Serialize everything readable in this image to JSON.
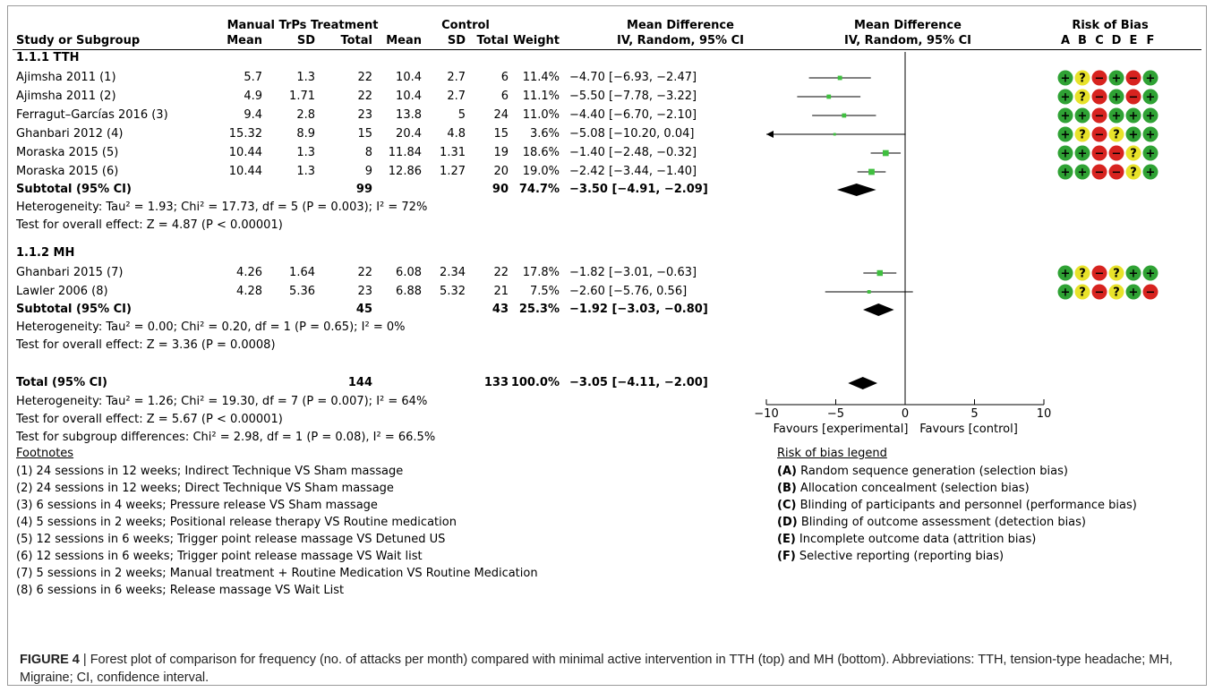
{
  "header": {
    "group_exp": "Manual TrPs Treatment",
    "group_ctrl": "Control",
    "md_title": "Mean Difference",
    "md_sub": "IV, Random, 95% CI",
    "plot_title": "Mean Difference",
    "plot_sub": "IV, Random, 95% CI",
    "rob_title": "Risk of Bias",
    "rob_letters": [
      "A",
      "B",
      "C",
      "D",
      "E",
      "F"
    ],
    "study_col": "Study or Subgroup",
    "mean": "Mean",
    "sd": "SD",
    "total": "Total",
    "weight": "Weight"
  },
  "colors": {
    "plus": "#2fa234",
    "question": "#e8e22a",
    "minus": "#d7231f",
    "point": "#3fbf3f"
  },
  "subgroups": [
    {
      "title": "1.1.1 TTH",
      "studies": [
        {
          "name": "Ajimsha 2011 (1)",
          "em": "5.7",
          "esd": "1.3",
          "et": "22",
          "cm": "10.4",
          "csd": "2.7",
          "ct": "6",
          "w": "11.4%",
          "ci": "−4.70 [−6.93, −2.47]",
          "rob": [
            "+",
            "?",
            "-",
            "+",
            "-",
            "+"
          ]
        },
        {
          "name": "Ajimsha 2011 (2)",
          "em": "4.9",
          "esd": "1.71",
          "et": "22",
          "cm": "10.4",
          "csd": "2.7",
          "ct": "6",
          "w": "11.1%",
          "ci": "−5.50 [−7.78, −3.22]",
          "rob": [
            "+",
            "?",
            "-",
            "+",
            "-",
            "+"
          ]
        },
        {
          "name": "Ferragut–Garcías 2016 (3)",
          "em": "9.4",
          "esd": "2.8",
          "et": "23",
          "cm": "13.8",
          "csd": "5",
          "ct": "24",
          "w": "11.0%",
          "ci": "−4.40 [−6.70, −2.10]",
          "rob": [
            "+",
            "+",
            "-",
            "+",
            "+",
            "+"
          ]
        },
        {
          "name": "Ghanbari 2012 (4)",
          "em": "15.32",
          "esd": "8.9",
          "et": "15",
          "cm": "20.4",
          "csd": "4.8",
          "ct": "15",
          "w": "3.6%",
          "ci": "−5.08 [−10.20, 0.04]",
          "rob": [
            "+",
            "?",
            "-",
            "?",
            "+",
            "+"
          ]
        },
        {
          "name": "Moraska 2015 (5)",
          "em": "10.44",
          "esd": "1.3",
          "et": "8",
          "cm": "11.84",
          "csd": "1.31",
          "ct": "19",
          "w": "18.6%",
          "ci": "−1.40 [−2.48, −0.32]",
          "rob": [
            "+",
            "+",
            "-",
            "-",
            "?",
            "+"
          ]
        },
        {
          "name": "Moraska 2015 (6)",
          "em": "10.44",
          "esd": "1.3",
          "et": "9",
          "cm": "12.86",
          "csd": "1.27",
          "ct": "20",
          "w": "19.0%",
          "ci": "−2.42 [−3.44, −1.40]",
          "rob": [
            "+",
            "+",
            "-",
            "-",
            "?",
            "+"
          ]
        }
      ],
      "subtotal": {
        "label": "Subtotal (95% CI)",
        "et": "99",
        "ct": "90",
        "w": "74.7%",
        "ci": "−3.50 [−4.91, −2.09]"
      },
      "heterogeneity": "Heterogeneity: Tau² = 1.93; Chi² = 17.73, df = 5 (P = 0.003); I² = 72%",
      "overall": "Test for overall effect: Z = 4.87 (P < 0.00001)"
    },
    {
      "title": "1.1.2 MH",
      "studies": [
        {
          "name": "Ghanbari 2015 (7)",
          "em": "4.26",
          "esd": "1.64",
          "et": "22",
          "cm": "6.08",
          "csd": "2.34",
          "ct": "22",
          "w": "17.8%",
          "ci": "−1.82 [−3.01, −0.63]",
          "rob": [
            "+",
            "?",
            "-",
            "?",
            "+",
            "+"
          ]
        },
        {
          "name": "Lawler 2006 (8)",
          "em": "4.28",
          "esd": "5.36",
          "et": "23",
          "cm": "6.88",
          "csd": "5.32",
          "ct": "21",
          "w": "7.5%",
          "ci": "−2.60 [−5.76, 0.56]",
          "rob": [
            "+",
            "?",
            "-",
            "?",
            "+",
            "-"
          ]
        }
      ],
      "subtotal": {
        "label": "Subtotal (95% CI)",
        "et": "45",
        "ct": "43",
        "w": "25.3%",
        "ci": "−1.92 [−3.03, −0.80]"
      },
      "heterogeneity": "Heterogeneity: Tau² = 0.00; Chi² = 0.20, df = 1 (P = 0.65); I² = 0%",
      "overall": "Test for overall effect: Z = 3.36 (P = 0.0008)"
    }
  ],
  "total": {
    "label": "Total (95% CI)",
    "et": "144",
    "ct": "133",
    "w": "100.0%",
    "ci": "−3.05 [−4.11, −2.00]",
    "heterogeneity": "Heterogeneity: Tau² = 1.26; Chi² = 19.30, df = 7 (P = 0.007); I² = 64%",
    "overall": "Test for overall effect: Z = 5.67 (P < 0.00001)",
    "subgroup_diff": "Test for subgroup differences: Chi² = 2.98, df = 1 (P = 0.08), I² = 66.5%"
  },
  "footnotes": {
    "title": "Footnotes",
    "items": [
      "(1) 24 sessions in 12 weeks; Indirect Technique VS Sham massage",
      "(2) 24 sessions in 12 weeks; Direct Technique VS Sham massage",
      "(3) 6 sessions in 4 weeks; Pressure release VS Sham massage",
      "(4) 5 sessions in 2 weeks; Positional release therapy VS Routine medication",
      "(5) 12 sessions in 6 weeks; Trigger point release massage VS Detuned US",
      "(6) 12 sessions in 6 weeks; Trigger point release massage VS Wait list",
      "(7) 5 sessions in 2 weeks; Manual treatment + Routine Medication VS Routine Medication",
      "(8) 6 sessions in 6 weeks; Release massage VS Wait List"
    ]
  },
  "rob_legend": {
    "title": "Risk of bias legend",
    "items": [
      {
        "key": "(A)",
        "text": " Random sequence generation (selection bias)"
      },
      {
        "key": "(B)",
        "text": " Allocation concealment (selection bias)"
      },
      {
        "key": "(C)",
        "text": " Blinding of participants and personnel (performance bias)"
      },
      {
        "key": "(D)",
        "text": " Blinding of outcome assessment (detection bias)"
      },
      {
        "key": "(E)",
        "text": " Incomplete outcome data (attrition bias)"
      },
      {
        "key": "(F)",
        "text": " Selective reporting (reporting bias)"
      }
    ]
  },
  "caption": {
    "label": "FIGURE 4",
    "text": " | Forest plot of comparison for frequency (no. of attacks per month) compared with minimal active intervention in TTH (top) and MH (bottom). Abbreviations: TTH, tension-type headache; MH, Migraine; CI, confidence interval."
  },
  "chart_data": {
    "type": "forest",
    "xlim": [
      -10,
      10
    ],
    "xticks": [
      "−10",
      "−5",
      "0",
      "5",
      "10"
    ],
    "xtick_values": [
      -10,
      -5,
      0,
      5,
      10
    ],
    "xlabel_left": "Favours [experimental]",
    "xlabel_right": "Favours [control]",
    "studies": [
      {
        "md": -4.7,
        "lo": -6.93,
        "hi": -2.47,
        "weight": 11.4
      },
      {
        "md": -5.5,
        "lo": -7.78,
        "hi": -3.22,
        "weight": 11.1
      },
      {
        "md": -4.4,
        "lo": -6.7,
        "hi": -2.1,
        "weight": 11.0
      },
      {
        "md": -5.08,
        "lo": -10.2,
        "hi": 0.04,
        "weight": 3.6
      },
      {
        "md": -1.4,
        "lo": -2.48,
        "hi": -0.32,
        "weight": 18.6
      },
      {
        "md": -2.42,
        "lo": -3.44,
        "hi": -1.4,
        "weight": 19.0
      },
      {
        "md": -1.82,
        "lo": -3.01,
        "hi": -0.63,
        "weight": 17.8
      },
      {
        "md": -2.6,
        "lo": -5.76,
        "hi": 0.56,
        "weight": 7.5
      }
    ],
    "diamonds": [
      {
        "md": -3.5,
        "lo": -4.91,
        "hi": -2.09
      },
      {
        "md": -1.92,
        "lo": -3.03,
        "hi": -0.8
      },
      {
        "md": -3.05,
        "lo": -4.11,
        "hi": -2.0
      }
    ]
  }
}
